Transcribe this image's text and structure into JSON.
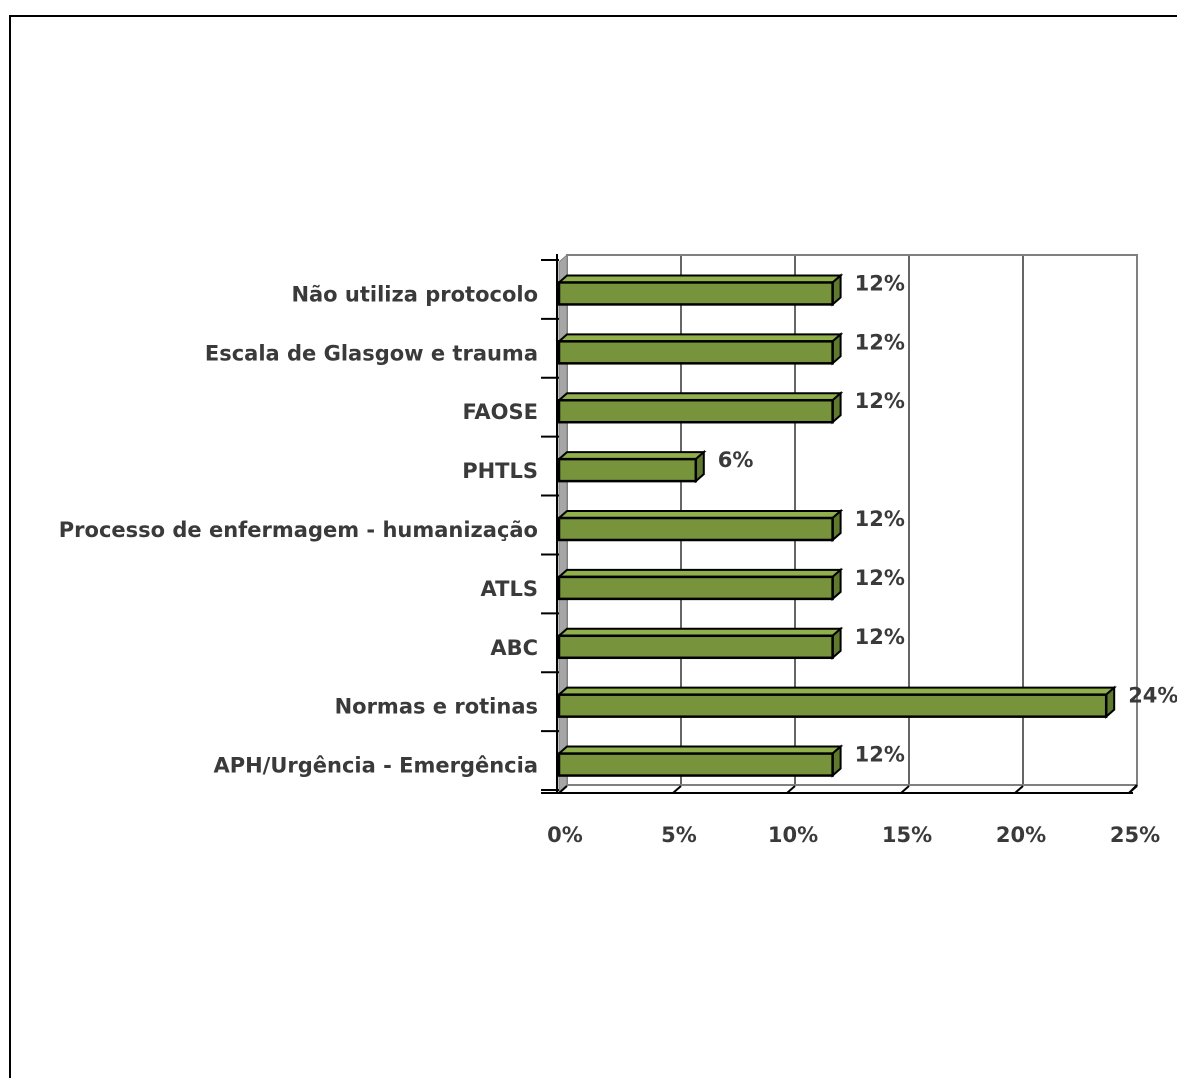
{
  "chart_data": {
    "type": "bar",
    "orientation": "horizontal",
    "categories": [
      "Não utiliza protocolo",
      "Escala de Glasgow e trauma",
      "FAOSE",
      "PHTLS",
      "Processo de enfermagem - humanização",
      "ATLS",
      "ABC",
      "Normas e rotinas",
      "APH/Urgência - Emergência"
    ],
    "values": [
      12,
      12,
      12,
      6,
      12,
      12,
      12,
      24,
      12
    ],
    "data_labels": [
      "12%",
      "12%",
      "12%",
      "6%",
      "12%",
      "12%",
      "12%",
      "24%",
      "12%"
    ],
    "xticks": [
      "0%",
      "5%",
      "10%",
      "15%",
      "20%",
      "25%"
    ],
    "xlim": [
      0,
      25
    ],
    "grid": true,
    "bar_color": "#77933c",
    "bar_edge_color": "#000000",
    "title": "",
    "xlabel": "",
    "ylabel": ""
  }
}
